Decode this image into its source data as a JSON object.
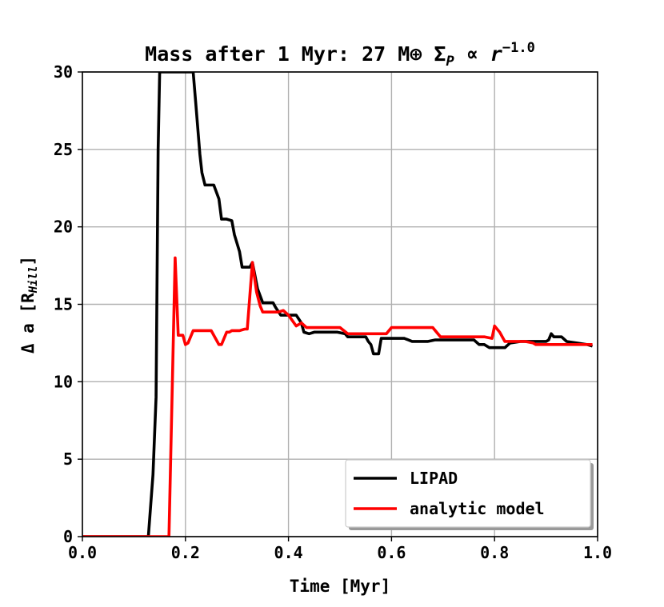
{
  "chart_data": {
    "type": "line",
    "title": "Mass after 1 Myr: 27 M⊕ Σ",
    "title_sub": "P",
    "title_mid": " ∝ ",
    "title_var": "r",
    "title_exp": "−1.0",
    "xlabel": "Time [Myr]",
    "ylabel": "Δ a [R",
    "ylabel_sub": "Hill",
    "ylabel_end": "]",
    "xlim": [
      0.0,
      1.0
    ],
    "ylim": [
      0,
      30
    ],
    "xticks": [
      0.0,
      0.2,
      0.4,
      0.6,
      0.8,
      1.0
    ],
    "xtick_labels": [
      "0.0",
      "0.2",
      "0.4",
      "0.6",
      "0.8",
      "1.0"
    ],
    "yticks": [
      0,
      5,
      10,
      15,
      20,
      25,
      30
    ],
    "ytick_labels": [
      "0",
      "5",
      "10",
      "15",
      "20",
      "25",
      "30"
    ],
    "grid": true,
    "legend_position": "lower-right",
    "series": [
      {
        "name": "LIPAD",
        "color": "#000000",
        "x": [
          0.0,
          0.128,
          0.137,
          0.143,
          0.147,
          0.15,
          0.2,
          0.215,
          0.22,
          0.228,
          0.232,
          0.238,
          0.255,
          0.265,
          0.27,
          0.28,
          0.29,
          0.295,
          0.305,
          0.31,
          0.325,
          0.33,
          0.34,
          0.35,
          0.37,
          0.375,
          0.385,
          0.4,
          0.415,
          0.425,
          0.43,
          0.44,
          0.45,
          0.46,
          0.48,
          0.495,
          0.51,
          0.515,
          0.53,
          0.54,
          0.55,
          0.555,
          0.56,
          0.565,
          0.575,
          0.58,
          0.59,
          0.6,
          0.615,
          0.625,
          0.64,
          0.645,
          0.655,
          0.67,
          0.685,
          0.7,
          0.72,
          0.74,
          0.76,
          0.77,
          0.78,
          0.79,
          0.82,
          0.83,
          0.85,
          0.88,
          0.9,
          0.905,
          0.91,
          0.915,
          0.93,
          0.94,
          0.96,
          0.98,
          0.99
        ],
        "values": [
          0.0,
          0.0,
          4.0,
          9.0,
          25.0,
          30.0,
          30.0,
          30.0,
          28.0,
          24.7,
          23.5,
          22.7,
          22.7,
          21.8,
          20.5,
          20.5,
          20.4,
          19.5,
          18.4,
          17.4,
          17.4,
          17.7,
          16.0,
          15.1,
          15.1,
          14.8,
          14.3,
          14.3,
          14.3,
          13.8,
          13.2,
          13.1,
          13.2,
          13.2,
          13.2,
          13.2,
          13.1,
          12.9,
          12.9,
          12.9,
          12.9,
          12.6,
          12.4,
          11.8,
          11.8,
          12.8,
          12.8,
          12.8,
          12.8,
          12.8,
          12.6,
          12.6,
          12.6,
          12.6,
          12.7,
          12.7,
          12.7,
          12.7,
          12.7,
          12.4,
          12.4,
          12.2,
          12.2,
          12.5,
          12.6,
          12.6,
          12.6,
          12.7,
          13.1,
          12.9,
          12.9,
          12.6,
          12.5,
          12.4,
          12.3
        ]
      },
      {
        "name": "analytic model",
        "color": "#ff0000",
        "x": [
          0.0,
          0.168,
          0.176,
          0.18,
          0.186,
          0.195,
          0.2,
          0.205,
          0.215,
          0.23,
          0.25,
          0.265,
          0.27,
          0.28,
          0.285,
          0.29,
          0.305,
          0.315,
          0.32,
          0.33,
          0.338,
          0.345,
          0.35,
          0.38,
          0.39,
          0.4,
          0.415,
          0.425,
          0.435,
          0.44,
          0.45,
          0.48,
          0.5,
          0.515,
          0.52,
          0.545,
          0.56,
          0.59,
          0.6,
          0.62,
          0.64,
          0.67,
          0.68,
          0.695,
          0.7,
          0.73,
          0.76,
          0.78,
          0.795,
          0.8,
          0.81,
          0.82,
          0.84,
          0.86,
          0.875,
          0.88,
          0.9,
          0.93,
          0.96,
          0.99
        ],
        "values": [
          0.0,
          0.0,
          12.0,
          18.0,
          13.0,
          13.0,
          12.4,
          12.5,
          13.3,
          13.3,
          13.3,
          12.4,
          12.4,
          13.2,
          13.2,
          13.3,
          13.3,
          13.4,
          13.4,
          17.7,
          15.8,
          14.9,
          14.5,
          14.5,
          14.6,
          14.3,
          13.6,
          13.8,
          13.5,
          13.5,
          13.5,
          13.5,
          13.5,
          13.1,
          13.1,
          13.1,
          13.1,
          13.1,
          13.5,
          13.5,
          13.5,
          13.5,
          13.5,
          12.9,
          12.9,
          12.9,
          12.9,
          12.9,
          12.8,
          13.6,
          13.2,
          12.6,
          12.6,
          12.6,
          12.5,
          12.4,
          12.4,
          12.4,
          12.4,
          12.4
        ]
      }
    ]
  }
}
